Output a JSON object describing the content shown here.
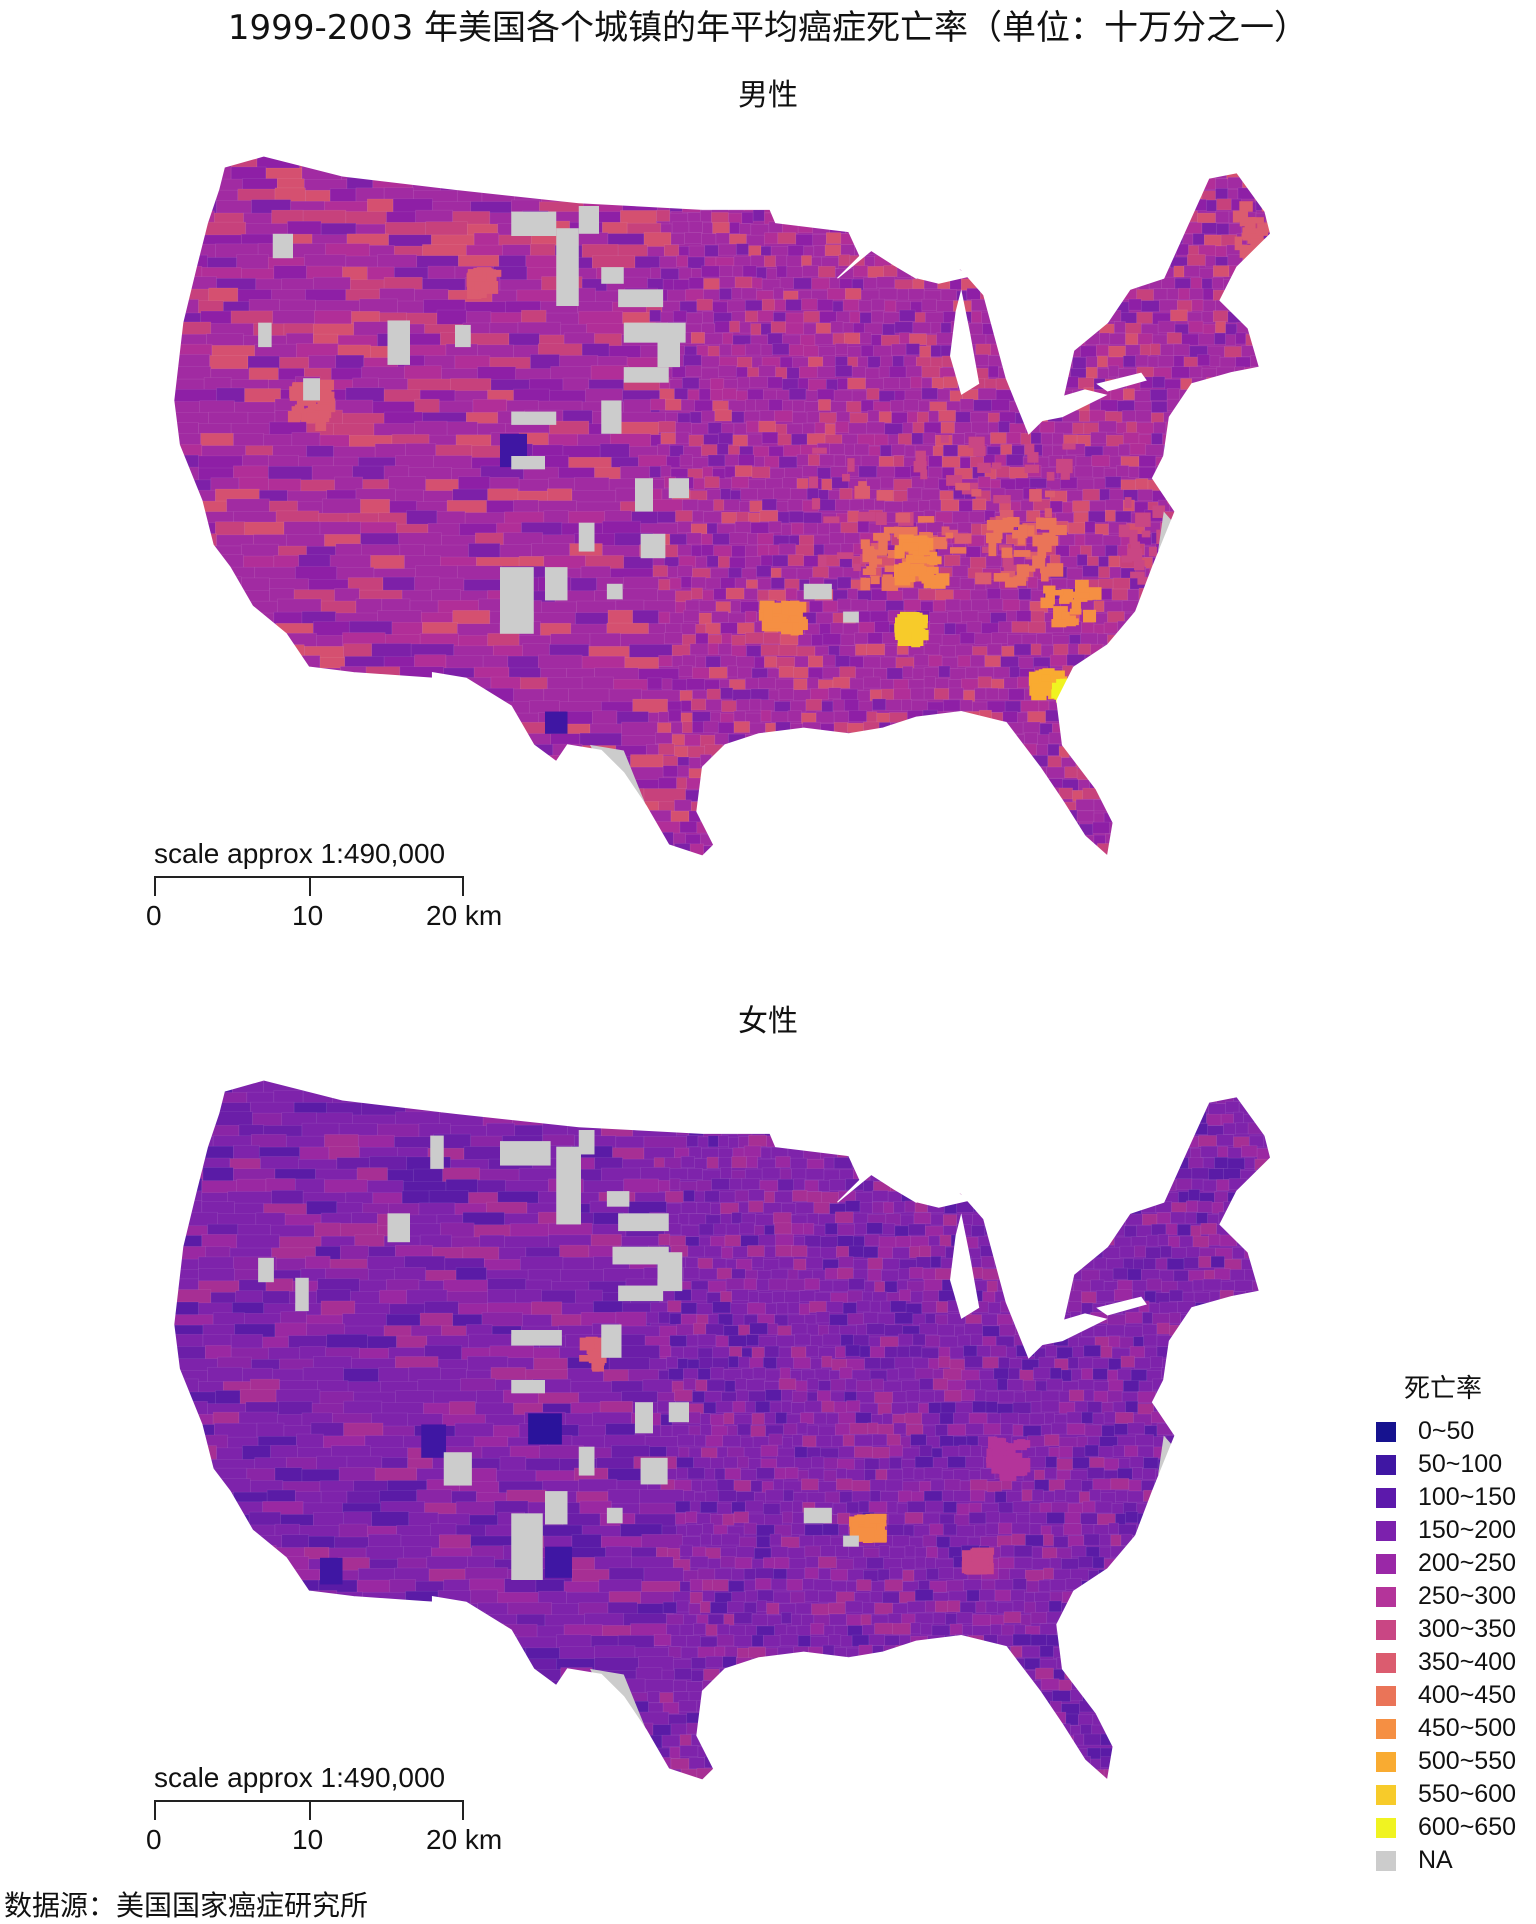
{
  "title": "1999-2003 年美国各个城镇的年平均癌症死亡率（单位：十万分之一）",
  "panels": [
    {
      "title": "男性",
      "scale": {
        "label": "scale approx 1:490,000",
        "ticks": [
          "0",
          "10",
          "20 km"
        ]
      },
      "base_color": "#a12ba2",
      "variation": [
        "#8e1fa6",
        "#b12e98",
        "#c7417c",
        "#7d20a8",
        "#d55070"
      ]
    },
    {
      "title": "女性",
      "scale": {
        "label": "scale approx 1:490,000",
        "ticks": [
          "0",
          "10",
          "20 km"
        ]
      },
      "base_color": "#7e23ab",
      "variation": [
        "#6b1ea8",
        "#8a25a6",
        "#5a1ba6",
        "#9a28a2",
        "#a72f94"
      ]
    }
  ],
  "legend": {
    "title": "死亡率",
    "entries": [
      {
        "label": "0~50",
        "color": "#16128f"
      },
      {
        "label": "50~100",
        "color": "#3f16a3"
      },
      {
        "label": "100~150",
        "color": "#5c19ab"
      },
      {
        "label": "150~200",
        "color": "#7c21ad"
      },
      {
        "label": "200~250",
        "color": "#9a28a7"
      },
      {
        "label": "250~300",
        "color": "#b4349a"
      },
      {
        "label": "300~350",
        "color": "#c94684"
      },
      {
        "label": "350~400",
        "color": "#db5c6f"
      },
      {
        "label": "400~450",
        "color": "#ea7458"
      },
      {
        "label": "450~500",
        "color": "#f58f43"
      },
      {
        "label": "500~550",
        "color": "#f9ab31"
      },
      {
        "label": "550~600",
        "color": "#f7cb2a"
      },
      {
        "label": "600~650",
        "color": "#f0f321"
      },
      {
        "label": "NA",
        "color": "#cccccc"
      }
    ]
  },
  "source": "数据源：美国国家癌症研究所"
}
